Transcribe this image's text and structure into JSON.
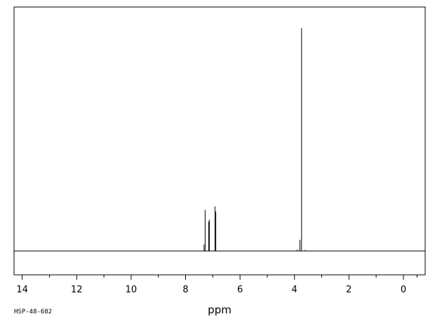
{
  "chart_data": {
    "type": "line",
    "title": "",
    "xlabel": "ppm",
    "ylabel": "",
    "xlim": [
      14.3,
      -0.8
    ],
    "ylim": [
      0,
      100
    ],
    "x_reversed": true,
    "grid": false,
    "x_ticks_major": [
      14,
      12,
      10,
      8,
      6,
      4,
      2,
      0
    ],
    "x_ticks_minor": [
      13,
      11,
      9,
      7,
      5,
      3,
      1,
      -0.5
    ],
    "series": [
      {
        "peaks": [
          {
            "ppm": 7.28,
            "height": 18.4
          },
          {
            "ppm": 7.15,
            "height": 13.2
          },
          {
            "ppm": 7.13,
            "height": 14.0
          },
          {
            "ppm": 6.92,
            "height": 20.0
          },
          {
            "ppm": 6.89,
            "height": 17.7
          },
          {
            "ppm": 7.32,
            "height": 3.0
          },
          {
            "ppm": 3.74,
            "height": 100
          },
          {
            "ppm": 3.8,
            "height": 5.0
          },
          {
            "ppm": 3.9,
            "height": 0.6
          },
          {
            "ppm": 3.6,
            "height": 0.5
          }
        ]
      }
    ],
    "annotations": [
      "HSP-48-682"
    ]
  }
}
